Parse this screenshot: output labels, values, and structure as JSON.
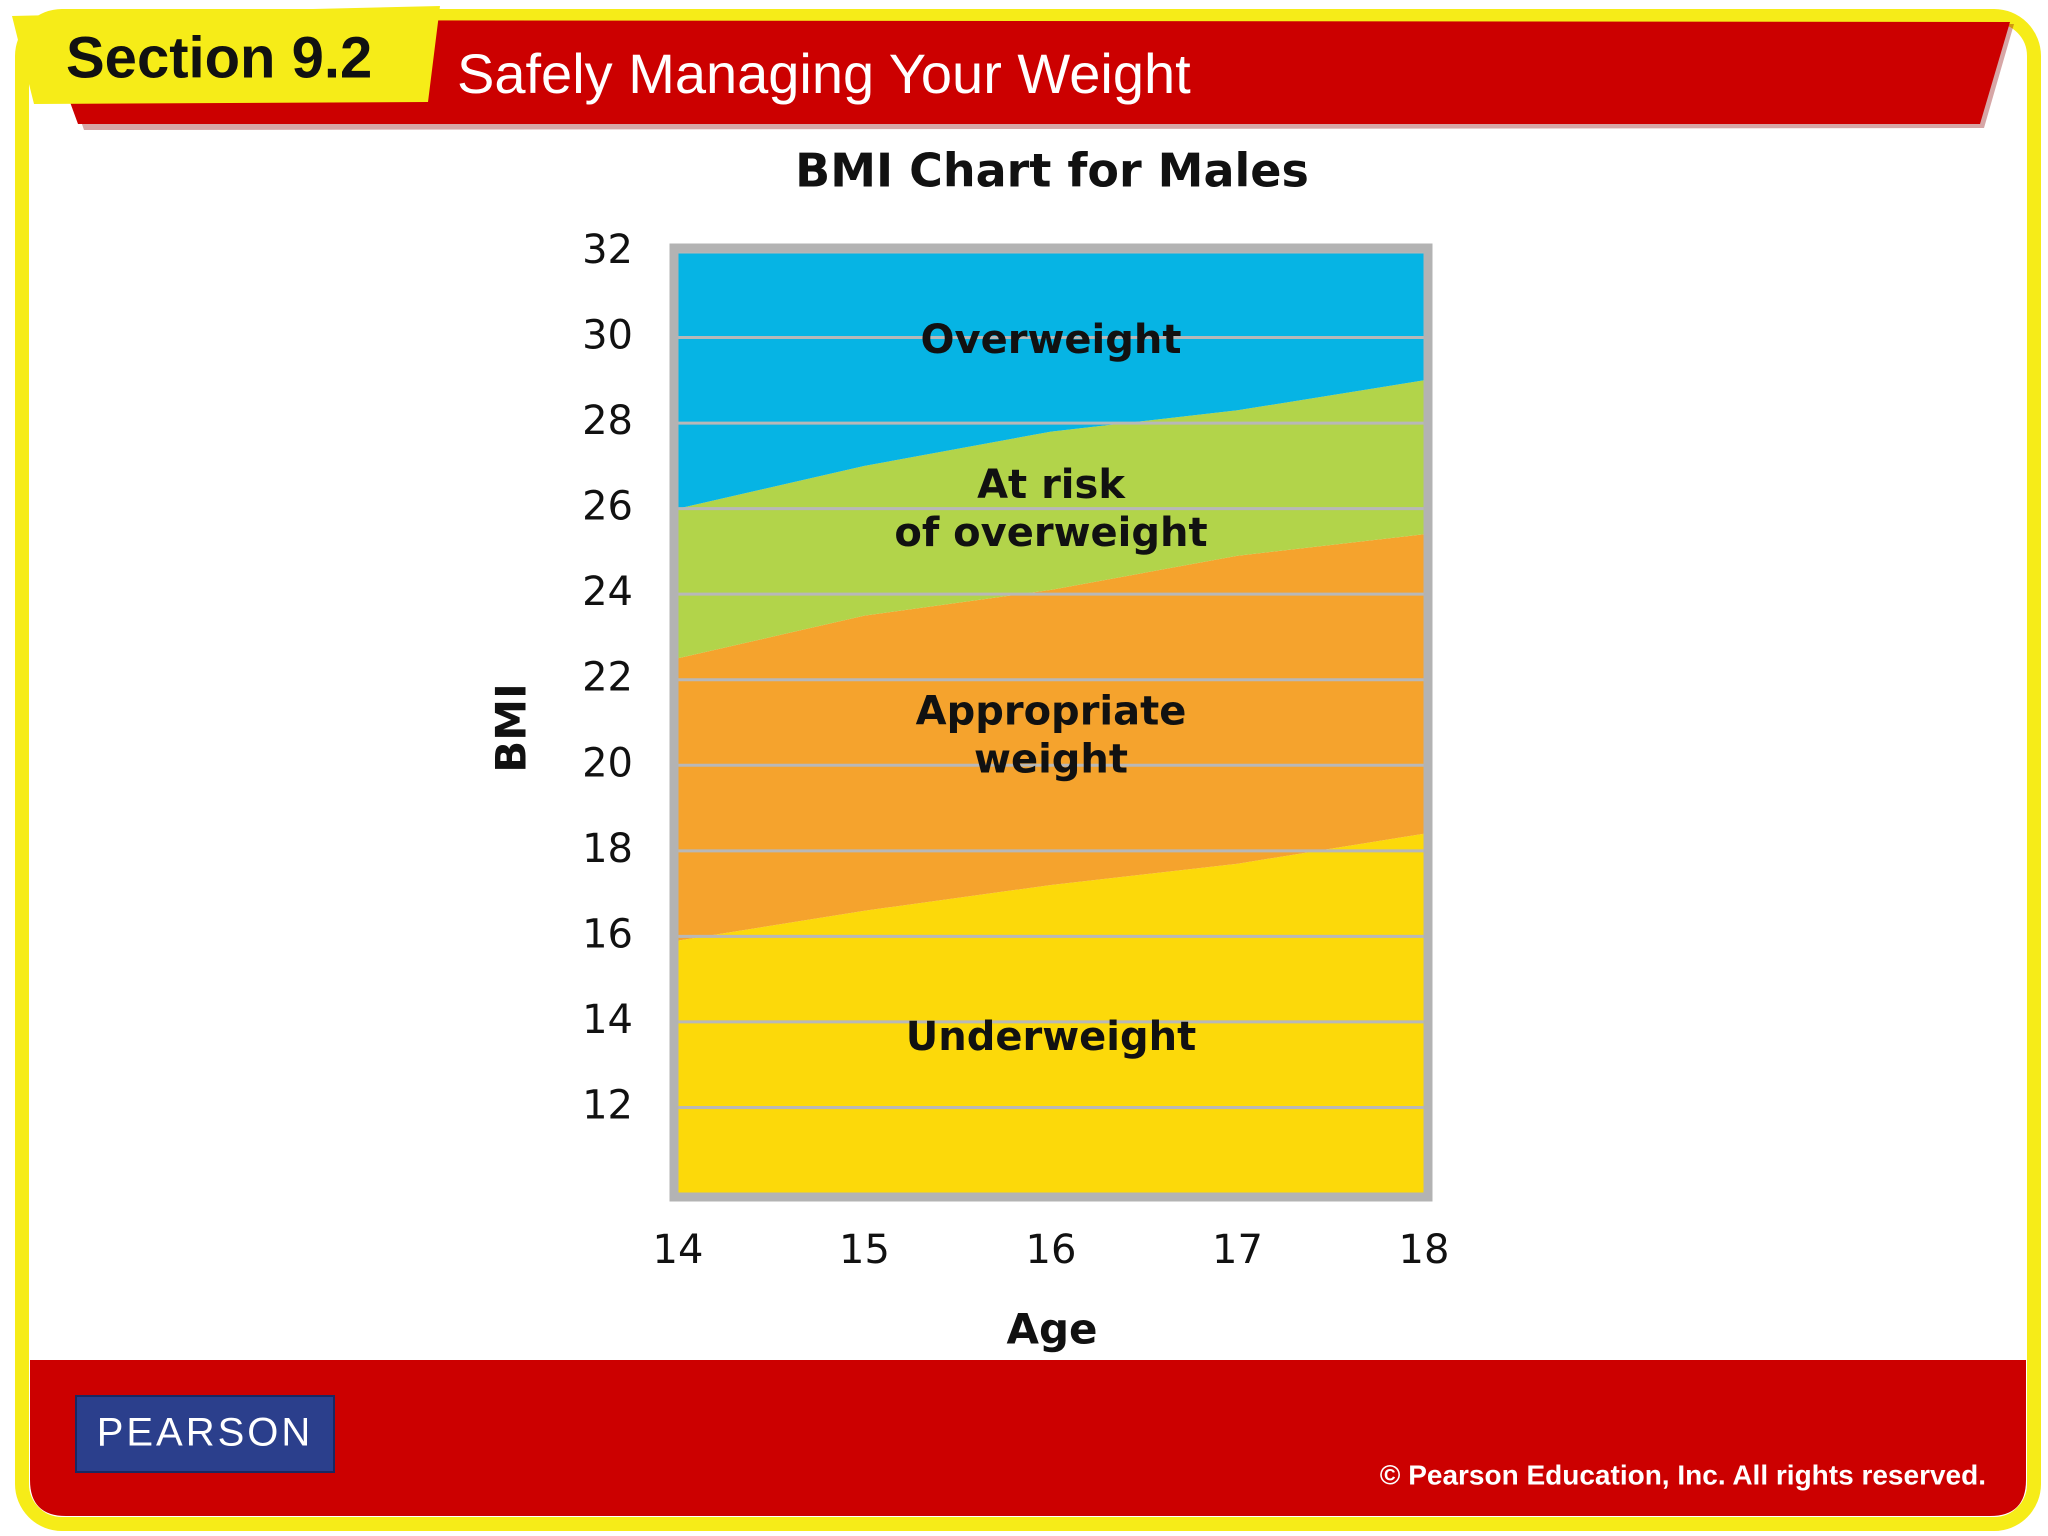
{
  "header": {
    "section": "Section 9.2",
    "title": "Safely Managing Your Weight"
  },
  "footer": {
    "logo": "PEARSON",
    "copyright": "© Pearson Education, Inc. All rights reserved."
  },
  "chart_data": {
    "type": "area",
    "title": "BMI Chart for Males",
    "x_label": "Age",
    "y_label": "BMI",
    "x": [
      14,
      15,
      16,
      17,
      18
    ],
    "series": [
      {
        "name": "Underweight",
        "color": "#fcd90a",
        "values": [
          15.9,
          16.6,
          17.2,
          17.7,
          18.4
        ]
      },
      {
        "name": "Appropriate weight",
        "color": "#f5a32d",
        "values": [
          22.5,
          23.5,
          24.1,
          24.9,
          25.4
        ]
      },
      {
        "name": "At risk of overweight",
        "color": "#b2d44a",
        "values": [
          26.0,
          27.0,
          27.8,
          28.3,
          29.0
        ]
      },
      {
        "name": "Overweight",
        "color": "#06b4e4",
        "values": [
          32,
          32,
          32,
          32,
          32
        ]
      }
    ],
    "xlim": [
      14,
      18
    ],
    "xticks": [
      14,
      15,
      16,
      17,
      18
    ],
    "ylim": [
      10,
      32
    ],
    "yticks": [
      12,
      14,
      16,
      18,
      20,
      22,
      24,
      26,
      28,
      30,
      32
    ],
    "grid": true
  }
}
